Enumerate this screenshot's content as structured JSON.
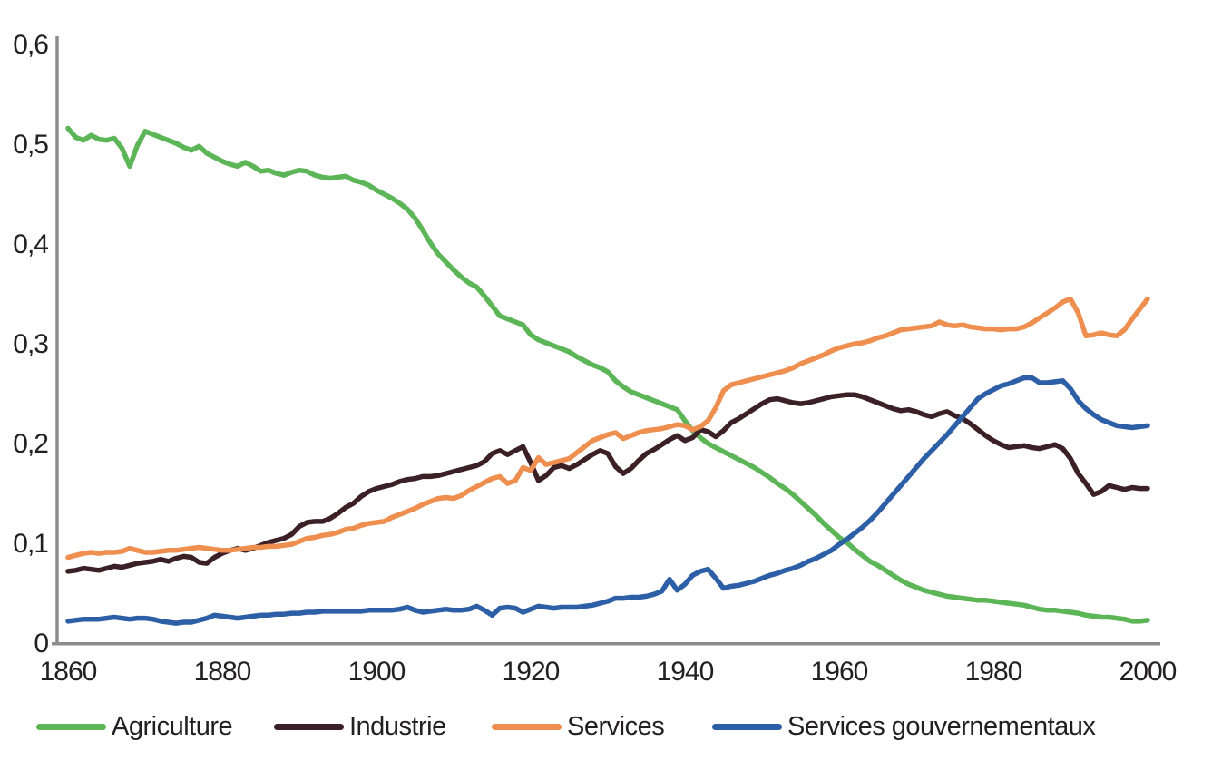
{
  "chart_data": {
    "type": "line",
    "title": "",
    "xlabel": "",
    "ylabel": "",
    "grid": false,
    "legend_position": "bottom",
    "axis_color": "#8c8c8c",
    "text_color": "#231f20",
    "x_start": 1860,
    "x_end": 2000,
    "x_step": 1,
    "x_axis": {
      "ticks": [
        {
          "value": 1860,
          "label": "1860"
        },
        {
          "value": 1880,
          "label": "1880"
        },
        {
          "value": 1900,
          "label": "1900"
        },
        {
          "value": 1920,
          "label": "1920"
        },
        {
          "value": 1940,
          "label": "1940"
        },
        {
          "value": 1960,
          "label": "1960"
        },
        {
          "value": 1980,
          "label": "1980"
        },
        {
          "value": 2000,
          "label": "2000"
        }
      ]
    },
    "y_axis": {
      "min": 0,
      "max": 0.6,
      "ticks": [
        {
          "value": 0,
          "label": "0"
        },
        {
          "value": 0.1,
          "label": "0,1"
        },
        {
          "value": 0.2,
          "label": "0,2"
        },
        {
          "value": 0.3,
          "label": "0,3"
        },
        {
          "value": 0.4,
          "label": "0,4"
        },
        {
          "value": 0.5,
          "label": "0,5"
        },
        {
          "value": 0.6,
          "label": "0,6"
        }
      ]
    },
    "series": [
      {
        "id": "agriculture",
        "name": "Agriculture",
        "color": "#5cb556",
        "values": [
          0.515,
          0.506,
          0.503,
          0.508,
          0.504,
          0.503,
          0.505,
          0.495,
          0.477,
          0.498,
          0.512,
          0.509,
          0.506,
          0.503,
          0.5,
          0.496,
          0.493,
          0.497,
          0.49,
          0.486,
          0.482,
          0.479,
          0.477,
          0.481,
          0.477,
          0.472,
          0.473,
          0.47,
          0.468,
          0.471,
          0.473,
          0.472,
          0.468,
          0.466,
          0.465,
          0.466,
          0.467,
          0.463,
          0.461,
          0.458,
          0.453,
          0.449,
          0.445,
          0.44,
          0.434,
          0.425,
          0.413,
          0.4,
          0.389,
          0.381,
          0.373,
          0.366,
          0.36,
          0.356,
          0.347,
          0.337,
          0.327,
          0.324,
          0.321,
          0.318,
          0.308,
          0.303,
          0.3,
          0.297,
          0.294,
          0.291,
          0.286,
          0.282,
          0.278,
          0.275,
          0.271,
          0.262,
          0.256,
          0.251,
          0.248,
          0.245,
          0.242,
          0.239,
          0.236,
          0.233,
          0.222,
          0.212,
          0.205,
          0.199,
          0.195,
          0.191,
          0.187,
          0.183,
          0.179,
          0.175,
          0.17,
          0.165,
          0.159,
          0.154,
          0.148,
          0.141,
          0.134,
          0.127,
          0.119,
          0.112,
          0.105,
          0.1,
          0.093,
          0.087,
          0.081,
          0.077,
          0.072,
          0.067,
          0.062,
          0.058,
          0.055,
          0.052,
          0.05,
          0.048,
          0.046,
          0.045,
          0.044,
          0.043,
          0.042,
          0.042,
          0.041,
          0.04,
          0.039,
          0.038,
          0.037,
          0.035,
          0.033,
          0.032,
          0.032,
          0.031,
          0.03,
          0.029,
          0.027,
          0.026,
          0.025,
          0.025,
          0.024,
          0.023,
          0.021,
          0.021,
          0.022
        ]
      },
      {
        "id": "industrie",
        "name": "Industrie",
        "color": "#3b2127",
        "values": [
          0.071,
          0.072,
          0.074,
          0.073,
          0.072,
          0.074,
          0.076,
          0.075,
          0.077,
          0.079,
          0.08,
          0.081,
          0.083,
          0.081,
          0.084,
          0.086,
          0.085,
          0.08,
          0.079,
          0.085,
          0.089,
          0.092,
          0.094,
          0.092,
          0.094,
          0.097,
          0.1,
          0.102,
          0.104,
          0.108,
          0.116,
          0.12,
          0.121,
          0.121,
          0.124,
          0.129,
          0.135,
          0.139,
          0.146,
          0.151,
          0.154,
          0.156,
          0.158,
          0.161,
          0.163,
          0.164,
          0.166,
          0.166,
          0.167,
          0.169,
          0.171,
          0.173,
          0.175,
          0.177,
          0.181,
          0.189,
          0.192,
          0.188,
          0.192,
          0.196,
          0.18,
          0.162,
          0.167,
          0.175,
          0.177,
          0.174,
          0.178,
          0.183,
          0.188,
          0.192,
          0.189,
          0.176,
          0.169,
          0.174,
          0.182,
          0.189,
          0.193,
          0.198,
          0.203,
          0.207,
          0.202,
          0.205,
          0.213,
          0.211,
          0.206,
          0.212,
          0.22,
          0.224,
          0.229,
          0.234,
          0.239,
          0.243,
          0.244,
          0.242,
          0.24,
          0.239,
          0.24,
          0.242,
          0.244,
          0.246,
          0.247,
          0.248,
          0.248,
          0.246,
          0.243,
          0.24,
          0.237,
          0.234,
          0.232,
          0.233,
          0.231,
          0.228,
          0.226,
          0.229,
          0.231,
          0.227,
          0.224,
          0.219,
          0.213,
          0.207,
          0.202,
          0.198,
          0.195,
          0.196,
          0.197,
          0.195,
          0.194,
          0.196,
          0.198,
          0.194,
          0.184,
          0.169,
          0.159,
          0.148,
          0.151,
          0.157,
          0.155,
          0.153,
          0.155,
          0.154,
          0.154
        ]
      },
      {
        "id": "services",
        "name": "Services",
        "color": "#ee8f4f",
        "values": [
          0.085,
          0.087,
          0.089,
          0.09,
          0.089,
          0.09,
          0.09,
          0.091,
          0.094,
          0.092,
          0.09,
          0.09,
          0.091,
          0.092,
          0.092,
          0.093,
          0.094,
          0.095,
          0.094,
          0.093,
          0.092,
          0.092,
          0.093,
          0.094,
          0.095,
          0.095,
          0.096,
          0.096,
          0.097,
          0.098,
          0.101,
          0.104,
          0.105,
          0.107,
          0.108,
          0.11,
          0.113,
          0.114,
          0.117,
          0.119,
          0.12,
          0.121,
          0.125,
          0.128,
          0.131,
          0.134,
          0.138,
          0.141,
          0.144,
          0.145,
          0.144,
          0.147,
          0.152,
          0.156,
          0.16,
          0.164,
          0.166,
          0.159,
          0.162,
          0.175,
          0.172,
          0.185,
          0.178,
          0.18,
          0.182,
          0.184,
          0.19,
          0.196,
          0.202,
          0.205,
          0.208,
          0.21,
          0.204,
          0.207,
          0.21,
          0.212,
          0.213,
          0.214,
          0.216,
          0.218,
          0.217,
          0.213,
          0.216,
          0.222,
          0.235,
          0.252,
          0.258,
          0.26,
          0.262,
          0.264,
          0.266,
          0.268,
          0.27,
          0.272,
          0.275,
          0.279,
          0.282,
          0.285,
          0.288,
          0.292,
          0.295,
          0.297,
          0.299,
          0.3,
          0.302,
          0.305,
          0.307,
          0.31,
          0.313,
          0.314,
          0.315,
          0.316,
          0.317,
          0.321,
          0.318,
          0.317,
          0.318,
          0.316,
          0.315,
          0.314,
          0.314,
          0.313,
          0.314,
          0.314,
          0.316,
          0.32,
          0.325,
          0.33,
          0.335,
          0.341,
          0.344,
          0.33,
          0.307,
          0.308,
          0.31,
          0.308,
          0.307,
          0.313,
          0.324,
          0.334,
          0.344
        ]
      },
      {
        "id": "services-gouvernementaux",
        "name": "Services gouvernementaux",
        "color": "#2d5fa6",
        "values": [
          0.021,
          0.022,
          0.023,
          0.023,
          0.023,
          0.024,
          0.025,
          0.024,
          0.023,
          0.024,
          0.024,
          0.023,
          0.021,
          0.02,
          0.019,
          0.02,
          0.02,
          0.022,
          0.024,
          0.027,
          0.026,
          0.025,
          0.024,
          0.025,
          0.026,
          0.027,
          0.027,
          0.028,
          0.028,
          0.029,
          0.029,
          0.03,
          0.03,
          0.031,
          0.031,
          0.031,
          0.031,
          0.031,
          0.031,
          0.032,
          0.032,
          0.032,
          0.032,
          0.033,
          0.035,
          0.032,
          0.03,
          0.031,
          0.032,
          0.033,
          0.032,
          0.032,
          0.033,
          0.036,
          0.032,
          0.027,
          0.034,
          0.035,
          0.034,
          0.03,
          0.033,
          0.036,
          0.035,
          0.034,
          0.035,
          0.035,
          0.035,
          0.036,
          0.037,
          0.039,
          0.041,
          0.044,
          0.044,
          0.045,
          0.045,
          0.046,
          0.048,
          0.051,
          0.063,
          0.052,
          0.058,
          0.067,
          0.071,
          0.073,
          0.064,
          0.054,
          0.056,
          0.057,
          0.059,
          0.061,
          0.064,
          0.067,
          0.069,
          0.072,
          0.074,
          0.077,
          0.081,
          0.084,
          0.088,
          0.092,
          0.098,
          0.103,
          0.109,
          0.115,
          0.122,
          0.13,
          0.139,
          0.148,
          0.157,
          0.166,
          0.175,
          0.184,
          0.192,
          0.2,
          0.208,
          0.217,
          0.226,
          0.235,
          0.244,
          0.249,
          0.253,
          0.257,
          0.259,
          0.262,
          0.265,
          0.265,
          0.26,
          0.26,
          0.261,
          0.262,
          0.254,
          0.242,
          0.234,
          0.228,
          0.223,
          0.22,
          0.217,
          0.216,
          0.215,
          0.216,
          0.217
        ]
      }
    ]
  }
}
